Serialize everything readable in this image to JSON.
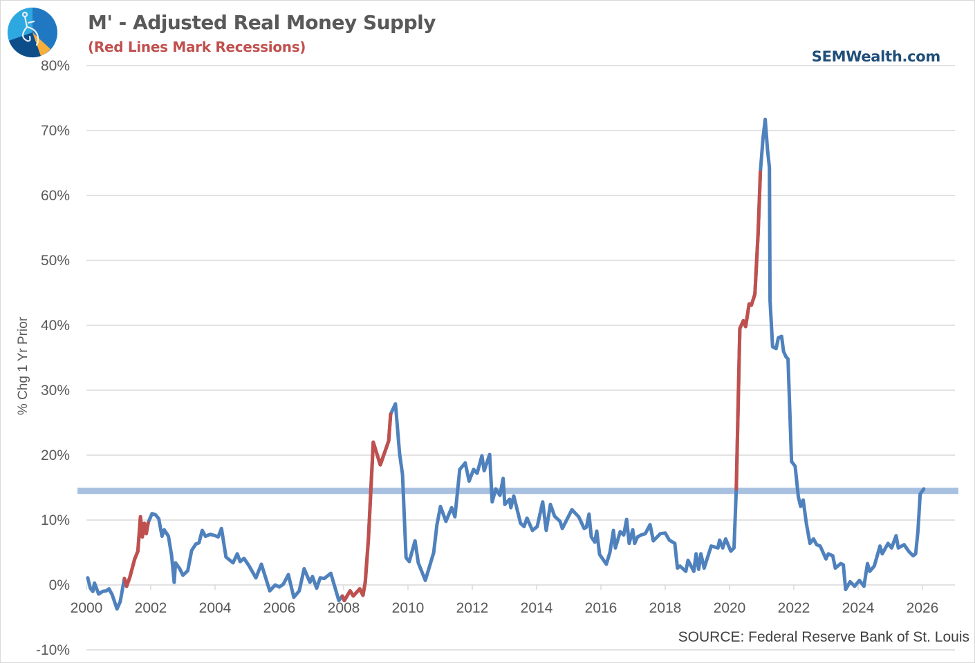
{
  "header": {
    "title": "M' - Adjusted Real Money Supply",
    "subtitle": "(Red Lines Mark Recessions)",
    "brand": "SEMWealth.com",
    "source": "SOURCE:  Federal Reserve Bank of St. Louis",
    "logo_icon": "compass-pie-logo"
  },
  "colors": {
    "line": "#4f81bd",
    "recession": "#c0504d",
    "reference": "#a7c0e0",
    "grid": "#d9d9d9",
    "title": "#595959",
    "brand": "#1f4e79"
  },
  "chart_data": {
    "type": "line",
    "title": "M' - Adjusted Real Money Supply",
    "subtitle": "(Red Lines Mark Recessions)",
    "xlabel": "",
    "ylabel": "% Chg 1 Yr Prior",
    "xlim": [
      2000,
      2027
    ],
    "ylim": [
      -10,
      80
    ],
    "grid": true,
    "x_ticks": [
      2000,
      2002,
      2004,
      2006,
      2008,
      2010,
      2012,
      2014,
      2016,
      2018,
      2020,
      2022,
      2024,
      2026
    ],
    "y_ticks": [
      -10,
      0,
      10,
      20,
      30,
      40,
      50,
      60,
      70,
      80
    ],
    "y_tick_labels": [
      "-10%",
      "0%",
      "10%",
      "20%",
      "30%",
      "40%",
      "50%",
      "60%",
      "70%",
      "80%"
    ],
    "x_tick_labels": [
      "2000",
      "2002",
      "2004",
      "2006",
      "2008",
      "2010",
      "2012",
      "2014",
      "2016",
      "2018",
      "2020",
      "2022",
      "2024",
      "2026"
    ],
    "reference_line": {
      "y": 14.5
    },
    "recession_periods": [
      [
        2001.18,
        2001.92
      ],
      [
        2007.96,
        2009.46
      ],
      [
        2020.21,
        2020.96
      ]
    ],
    "series": [
      {
        "name": "M' % Chg 1 Yr Prior",
        "points": [
          [
            2000.04,
            1.1
          ],
          [
            2000.12,
            -0.5
          ],
          [
            2000.2,
            -1.0
          ],
          [
            2000.25,
            0.3
          ],
          [
            2000.38,
            -1.4
          ],
          [
            2000.5,
            -1.0
          ],
          [
            2000.62,
            -0.9
          ],
          [
            2000.7,
            -0.6
          ],
          [
            2000.8,
            -1.5
          ],
          [
            2000.95,
            -3.7
          ],
          [
            2001.05,
            -2.6
          ],
          [
            2001.18,
            1.0
          ],
          [
            2001.25,
            -0.2
          ],
          [
            2001.35,
            1.2
          ],
          [
            2001.5,
            4.0
          ],
          [
            2001.6,
            5.2
          ],
          [
            2001.68,
            10.5
          ],
          [
            2001.74,
            7.4
          ],
          [
            2001.8,
            9.5
          ],
          [
            2001.86,
            7.9
          ],
          [
            2001.92,
            9.6
          ],
          [
            2002.04,
            11.0
          ],
          [
            2002.15,
            10.8
          ],
          [
            2002.25,
            10.2
          ],
          [
            2002.35,
            7.5
          ],
          [
            2002.42,
            8.5
          ],
          [
            2002.55,
            7.5
          ],
          [
            2002.65,
            4.5
          ],
          [
            2002.73,
            0.4
          ],
          [
            2002.77,
            3.4
          ],
          [
            2002.9,
            2.5
          ],
          [
            2003.0,
            1.5
          ],
          [
            2003.15,
            2.2
          ],
          [
            2003.27,
            5.3
          ],
          [
            2003.4,
            6.3
          ],
          [
            2003.5,
            6.5
          ],
          [
            2003.6,
            8.4
          ],
          [
            2003.7,
            7.5
          ],
          [
            2003.85,
            7.8
          ],
          [
            2004.0,
            7.6
          ],
          [
            2004.1,
            7.4
          ],
          [
            2004.2,
            8.7
          ],
          [
            2004.34,
            4.3
          ],
          [
            2004.56,
            3.4
          ],
          [
            2004.69,
            4.8
          ],
          [
            2004.78,
            3.6
          ],
          [
            2004.9,
            4.1
          ],
          [
            2005.05,
            3.0
          ],
          [
            2005.27,
            1.1
          ],
          [
            2005.44,
            3.2
          ],
          [
            2005.7,
            -0.9
          ],
          [
            2005.87,
            0
          ],
          [
            2006.0,
            -0.3
          ],
          [
            2006.12,
            0.1
          ],
          [
            2006.28,
            1.6
          ],
          [
            2006.45,
            -1.9
          ],
          [
            2006.62,
            -0.9
          ],
          [
            2006.77,
            2.5
          ],
          [
            2006.95,
            0.4
          ],
          [
            2007.03,
            1.3
          ],
          [
            2007.16,
            -0.5
          ],
          [
            2007.27,
            1.1
          ],
          [
            2007.4,
            1.0
          ],
          [
            2007.6,
            1.8
          ],
          [
            2007.85,
            -2.4
          ],
          [
            2007.96,
            -1.7
          ],
          [
            2008.02,
            -2.4
          ],
          [
            2008.2,
            -0.9
          ],
          [
            2008.3,
            -1.7
          ],
          [
            2008.5,
            -0.6
          ],
          [
            2008.6,
            -1.6
          ],
          [
            2008.67,
            0.4
          ],
          [
            2008.77,
            7.1
          ],
          [
            2008.85,
            15.0
          ],
          [
            2008.92,
            22.0
          ],
          [
            2009.14,
            18.5
          ],
          [
            2009.4,
            22.2
          ],
          [
            2009.46,
            26.3
          ],
          [
            2009.61,
            27.9
          ],
          [
            2009.74,
            20.2
          ],
          [
            2009.83,
            17.0
          ],
          [
            2009.94,
            4.2
          ],
          [
            2010.04,
            3.6
          ],
          [
            2010.22,
            6.8
          ],
          [
            2010.32,
            3.4
          ],
          [
            2010.54,
            0.7
          ],
          [
            2010.8,
            5.0
          ],
          [
            2010.9,
            9.3
          ],
          [
            2011.01,
            12.1
          ],
          [
            2011.18,
            9.8
          ],
          [
            2011.36,
            11.9
          ],
          [
            2011.46,
            10.5
          ],
          [
            2011.61,
            17.8
          ],
          [
            2011.78,
            18.8
          ],
          [
            2011.9,
            16.0
          ],
          [
            2012.04,
            17.8
          ],
          [
            2012.15,
            17.2
          ],
          [
            2012.3,
            19.9
          ],
          [
            2012.37,
            17.6
          ],
          [
            2012.54,
            20.1
          ],
          [
            2012.62,
            12.8
          ],
          [
            2012.73,
            14.8
          ],
          [
            2012.86,
            13.8
          ],
          [
            2012.96,
            16.4
          ],
          [
            2013.01,
            12.4
          ],
          [
            2013.16,
            13.2
          ],
          [
            2013.2,
            11.9
          ],
          [
            2013.29,
            13.7
          ],
          [
            2013.5,
            9.5
          ],
          [
            2013.61,
            9.0
          ],
          [
            2013.7,
            10.3
          ],
          [
            2013.87,
            8.4
          ],
          [
            2014.02,
            9.0
          ],
          [
            2014.19,
            12.8
          ],
          [
            2014.3,
            8.4
          ],
          [
            2014.43,
            12.4
          ],
          [
            2014.56,
            10.6
          ],
          [
            2014.73,
            9.8
          ],
          [
            2014.8,
            8.7
          ],
          [
            2015.1,
            11.6
          ],
          [
            2015.31,
            10.5
          ],
          [
            2015.48,
            8.7
          ],
          [
            2015.55,
            8.9
          ],
          [
            2015.63,
            10.9
          ],
          [
            2015.7,
            7.4
          ],
          [
            2015.81,
            6.6
          ],
          [
            2015.87,
            8.3
          ],
          [
            2015.96,
            4.7
          ],
          [
            2016.17,
            3.2
          ],
          [
            2016.28,
            5.0
          ],
          [
            2016.39,
            8.4
          ],
          [
            2016.45,
            5.7
          ],
          [
            2016.6,
            8.2
          ],
          [
            2016.71,
            7.7
          ],
          [
            2016.8,
            10.1
          ],
          [
            2016.88,
            6.4
          ],
          [
            2016.99,
            8.5
          ],
          [
            2017.05,
            6.4
          ],
          [
            2017.14,
            7.4
          ],
          [
            2017.25,
            7.7
          ],
          [
            2017.38,
            7.9
          ],
          [
            2017.53,
            9.3
          ],
          [
            2017.63,
            6.8
          ],
          [
            2017.85,
            7.9
          ],
          [
            2018.0,
            8.0
          ],
          [
            2018.13,
            6.9
          ],
          [
            2018.3,
            6.4
          ],
          [
            2018.38,
            2.6
          ],
          [
            2018.46,
            2.9
          ],
          [
            2018.64,
            2.1
          ],
          [
            2018.71,
            3.8
          ],
          [
            2018.89,
            2.1
          ],
          [
            2018.96,
            4.8
          ],
          [
            2019.04,
            2.4
          ],
          [
            2019.11,
            4.8
          ],
          [
            2019.21,
            2.6
          ],
          [
            2019.43,
            6.0
          ],
          [
            2019.64,
            5.7
          ],
          [
            2019.69,
            6.9
          ],
          [
            2019.79,
            5.7
          ],
          [
            2019.88,
            7.1
          ],
          [
            2020.04,
            5.2
          ],
          [
            2020.14,
            5.7
          ],
          [
            2020.21,
            14.8
          ],
          [
            2020.32,
            39.5
          ],
          [
            2020.43,
            40.7
          ],
          [
            2020.5,
            39.8
          ],
          [
            2020.61,
            43.3
          ],
          [
            2020.68,
            43.1
          ],
          [
            2020.79,
            44.8
          ],
          [
            2020.89,
            54.3
          ],
          [
            2020.96,
            63.6
          ],
          [
            2021.04,
            68.8
          ],
          [
            2021.11,
            71.7
          ],
          [
            2021.18,
            67.1
          ],
          [
            2021.24,
            64.3
          ],
          [
            2021.26,
            43.8
          ],
          [
            2021.34,
            36.7
          ],
          [
            2021.45,
            36.4
          ],
          [
            2021.52,
            38.1
          ],
          [
            2021.62,
            38.3
          ],
          [
            2021.68,
            36.0
          ],
          [
            2021.75,
            35.2
          ],
          [
            2021.82,
            34.8
          ],
          [
            2021.93,
            19.0
          ],
          [
            2022.04,
            18.3
          ],
          [
            2022.14,
            13.6
          ],
          [
            2022.21,
            12.1
          ],
          [
            2022.29,
            13.1
          ],
          [
            2022.39,
            9.5
          ],
          [
            2022.5,
            6.4
          ],
          [
            2022.61,
            7.1
          ],
          [
            2022.71,
            6.2
          ],
          [
            2022.82,
            6.0
          ],
          [
            2023.0,
            4.0
          ],
          [
            2023.07,
            4.8
          ],
          [
            2023.21,
            4.5
          ],
          [
            2023.29,
            2.6
          ],
          [
            2023.46,
            3.3
          ],
          [
            2023.54,
            3.1
          ],
          [
            2023.61,
            -0.7
          ],
          [
            2023.75,
            0.5
          ],
          [
            2023.89,
            -0.2
          ],
          [
            2024.04,
            0.7
          ],
          [
            2024.18,
            -0.2
          ],
          [
            2024.29,
            3.3
          ],
          [
            2024.36,
            2.1
          ],
          [
            2024.5,
            2.9
          ],
          [
            2024.68,
            6.0
          ],
          [
            2024.75,
            4.8
          ],
          [
            2024.93,
            6.4
          ],
          [
            2025.04,
            5.7
          ],
          [
            2025.18,
            7.6
          ],
          [
            2025.25,
            5.7
          ],
          [
            2025.43,
            6.2
          ],
          [
            2025.57,
            5.2
          ],
          [
            2025.71,
            4.5
          ],
          [
            2025.79,
            4.8
          ],
          [
            2025.86,
            8.3
          ],
          [
            2025.93,
            14.0
          ],
          [
            2026.04,
            14.8
          ]
        ]
      }
    ]
  }
}
